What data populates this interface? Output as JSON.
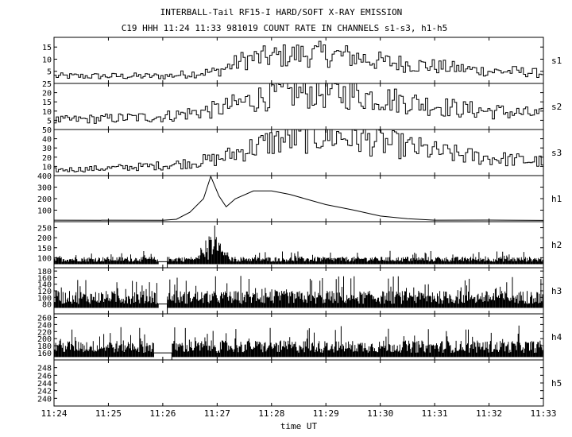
{
  "header": {
    "title": "INTERBALL-Tail RF15-I HARD/SOFT X-RAY EMISSION",
    "subtitle": "C19 HHH 11:24 11:33 981019  COUNT RATE IN CHANNELS s1-s3, h1-h5"
  },
  "chart_data": {
    "type": "line",
    "title": "INTERBALL-Tail RF15-I HARD/SOFT X-RAY EMISSION",
    "subtitle": "C19 HHH 11:24 11:33 981019  COUNT RATE IN CHANNELS s1-s3, h1-h5",
    "xlabel": "time UT",
    "x_ticks": [
      "11:24",
      "11:25",
      "11:26",
      "11:27",
      "11:28",
      "11:29",
      "11:30",
      "11:31",
      "11:32",
      "11:33"
    ],
    "x_range": [
      "11:24",
      "11:33"
    ],
    "grid": true,
    "colors": {
      "line": "#000000",
      "axes": "#000000",
      "grid": "#000000"
    },
    "panels": [
      {
        "name": "s1",
        "ylim": [
          0,
          19
        ],
        "yticks": [
          "5",
          "10",
          "15"
        ],
        "yticks_values": [
          5,
          10,
          15
        ],
        "style": "step",
        "series": [
          {
            "t": "11:24",
            "v": 3
          },
          {
            "t": "11:25",
            "v": 3
          },
          {
            "t": "11:26",
            "v": 3
          },
          {
            "t": "11:26:30",
            "v": 4
          },
          {
            "t": "11:27",
            "v": 5
          },
          {
            "t": "11:27:30",
            "v": 10
          },
          {
            "t": "11:28",
            "v": 11
          },
          {
            "t": "11:28:30",
            "v": 12
          },
          {
            "t": "11:29",
            "v": 12
          },
          {
            "t": "11:29:30",
            "v": 11
          },
          {
            "t": "11:30",
            "v": 9
          },
          {
            "t": "11:30:30",
            "v": 8
          },
          {
            "t": "11:31",
            "v": 7
          },
          {
            "t": "11:31:30",
            "v": 6
          },
          {
            "t": "11:32",
            "v": 5
          },
          {
            "t": "11:32:30",
            "v": 5
          },
          {
            "t": "11:33",
            "v": 4
          }
        ]
      },
      {
        "name": "s2",
        "ylim": [
          0,
          25
        ],
        "yticks": [
          "5",
          "10",
          "15",
          "20",
          "25"
        ],
        "yticks_values": [
          5,
          10,
          15,
          20,
          25
        ],
        "style": "step",
        "series": [
          {
            "t": "11:24",
            "v": 5
          },
          {
            "t": "11:25",
            "v": 6
          },
          {
            "t": "11:26",
            "v": 7
          },
          {
            "t": "11:26:30",
            "v": 9
          },
          {
            "t": "11:27",
            "v": 11
          },
          {
            "t": "11:27:30",
            "v": 15
          },
          {
            "t": "11:28",
            "v": 19
          },
          {
            "t": "11:28:30",
            "v": 20
          },
          {
            "t": "11:29",
            "v": 20
          },
          {
            "t": "11:29:30",
            "v": 19
          },
          {
            "t": "11:30",
            "v": 17
          },
          {
            "t": "11:30:30",
            "v": 15
          },
          {
            "t": "11:31",
            "v": 13
          },
          {
            "t": "11:31:30",
            "v": 11
          },
          {
            "t": "11:32",
            "v": 10
          },
          {
            "t": "11:32:30",
            "v": 9
          },
          {
            "t": "11:33",
            "v": 8
          }
        ]
      },
      {
        "name": "s3",
        "ylim": [
          0,
          50
        ],
        "yticks": [
          "10",
          "20",
          "30",
          "40",
          "50"
        ],
        "yticks_values": [
          10,
          20,
          30,
          40,
          50
        ],
        "style": "step",
        "series": [
          {
            "t": "11:24",
            "v": 6
          },
          {
            "t": "11:25",
            "v": 8
          },
          {
            "t": "11:26",
            "v": 11
          },
          {
            "t": "11:26:30",
            "v": 14
          },
          {
            "t": "11:27",
            "v": 18
          },
          {
            "t": "11:27:30",
            "v": 28
          },
          {
            "t": "11:28",
            "v": 37
          },
          {
            "t": "11:28:30",
            "v": 42
          },
          {
            "t": "11:29",
            "v": 44
          },
          {
            "t": "11:29:30",
            "v": 41
          },
          {
            "t": "11:30",
            "v": 36
          },
          {
            "t": "11:30:30",
            "v": 31
          },
          {
            "t": "11:31",
            "v": 26
          },
          {
            "t": "11:31:30",
            "v": 22
          },
          {
            "t": "11:32",
            "v": 19
          },
          {
            "t": "11:32:30",
            "v": 17
          },
          {
            "t": "11:33",
            "v": 15
          }
        ]
      },
      {
        "name": "h1",
        "ylim": [
          0,
          400
        ],
        "yticks": [
          "100",
          "200",
          "300",
          "400"
        ],
        "yticks_values": [
          100,
          200,
          300,
          400
        ],
        "style": "line",
        "series": [
          {
            "t": "11:24",
            "v": 10
          },
          {
            "t": "11:26",
            "v": 10
          },
          {
            "t": "11:26:15",
            "v": 20
          },
          {
            "t": "11:26:30",
            "v": 80
          },
          {
            "t": "11:26:45",
            "v": 200
          },
          {
            "t": "11:26:53",
            "v": 390
          },
          {
            "t": "11:27:02",
            "v": 220
          },
          {
            "t": "11:27:10",
            "v": 130
          },
          {
            "t": "11:27:20",
            "v": 200
          },
          {
            "t": "11:27:40",
            "v": 270
          },
          {
            "t": "11:28",
            "v": 270
          },
          {
            "t": "11:28:20",
            "v": 240
          },
          {
            "t": "11:28:40",
            "v": 190
          },
          {
            "t": "11:29",
            "v": 150
          },
          {
            "t": "11:29:30",
            "v": 100
          },
          {
            "t": "11:30",
            "v": 50
          },
          {
            "t": "11:30:30",
            "v": 25
          },
          {
            "t": "11:31",
            "v": 15
          },
          {
            "t": "11:32",
            "v": 12
          },
          {
            "t": "11:33",
            "v": 10
          }
        ]
      },
      {
        "name": "h2",
        "ylim": [
          50,
          280
        ],
        "yticks": [
          "100",
          "150",
          "200",
          "250"
        ],
        "yticks_values": [
          100,
          150,
          200,
          250
        ],
        "style": "noisy",
        "base": 80,
        "noise": 25,
        "gap": [
          "11:25:55",
          "11:26:05"
        ],
        "peaks": [
          {
            "t": "11:26:55",
            "v": 240
          }
        ]
      },
      {
        "name": "h3",
        "ylim": [
          50,
          190
        ],
        "yticks": [
          "80",
          "100",
          "120",
          "140",
          "160",
          "180"
        ],
        "yticks_values": [
          80,
          100,
          120,
          140,
          160,
          180
        ],
        "style": "noisy",
        "base": 80,
        "noise": 40,
        "gap": [
          "11:25:55",
          "11:26:05"
        ],
        "peaks": []
      },
      {
        "name": "h4",
        "ylim": [
          140,
          270
        ],
        "yticks": [
          "160",
          "180",
          "200",
          "220",
          "240",
          "260"
        ],
        "yticks_values": [
          160,
          180,
          200,
          220,
          240,
          260
        ],
        "style": "noisy",
        "base": 160,
        "noise": 35,
        "gap": [
          "11:25:50",
          "11:26:10"
        ],
        "peaks": []
      },
      {
        "name": "h5",
        "ylim": [
          238,
          250
        ],
        "yticks": [
          "240",
          "242",
          "244",
          "246",
          "248"
        ],
        "yticks_values": [
          240,
          242,
          244,
          246,
          248
        ],
        "style": "empty",
        "series": []
      }
    ]
  }
}
